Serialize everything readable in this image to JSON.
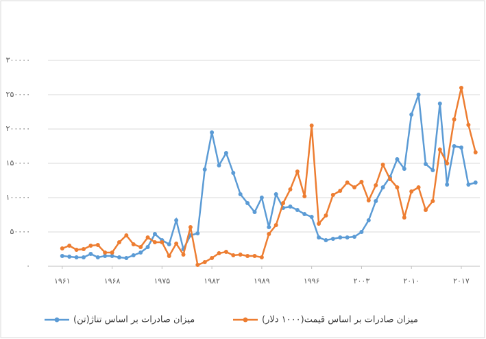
{
  "chart_data": {
    "type": "line",
    "x": [
      1961,
      1962,
      1963,
      1964,
      1965,
      1966,
      1967,
      1968,
      1969,
      1970,
      1971,
      1972,
      1973,
      1974,
      1975,
      1976,
      1977,
      1978,
      1979,
      1980,
      1981,
      1982,
      1983,
      1984,
      1985,
      1986,
      1987,
      1988,
      1989,
      1990,
      1991,
      1992,
      1993,
      1994,
      1995,
      1996,
      1997,
      1998,
      1999,
      2000,
      2001,
      2002,
      2003,
      2004,
      2005,
      2006,
      2007,
      2008,
      2009,
      2010,
      2011,
      2012,
      2013,
      2014,
      2015,
      2016,
      2017,
      2018,
      2019
    ],
    "series": [
      {
        "name": "میزان صادرات بر اساس تناژ(تن)",
        "color": "#5b9bd5",
        "values": [
          15000,
          14000,
          13000,
          13000,
          18000,
          13000,
          15000,
          15000,
          13000,
          12000,
          16000,
          20000,
          28000,
          47000,
          38000,
          32000,
          67000,
          25000,
          45000,
          48000,
          141000,
          195000,
          147000,
          165000,
          136000,
          105000,
          92000,
          79000,
          100000,
          57000,
          105000,
          85000,
          87000,
          82000,
          76000,
          72000,
          42000,
          38000,
          40000,
          42000,
          42000,
          43000,
          50000,
          67000,
          95000,
          115000,
          130000,
          156000,
          142000,
          221000,
          250000,
          149000,
          140000,
          237000,
          119000,
          175000,
          173000,
          119000,
          122000
        ]
      },
      {
        "name": "میزان صادرات بر اساس قیمت(۱۰۰۰ دلار)",
        "color": "#ed7d31",
        "values": [
          26000,
          30000,
          24000,
          25000,
          30000,
          31000,
          20000,
          20000,
          35000,
          45000,
          32000,
          28000,
          42000,
          35000,
          35000,
          15000,
          33000,
          17000,
          57000,
          2000,
          6000,
          12000,
          19000,
          21000,
          16000,
          17000,
          15000,
          15000,
          13000,
          47000,
          60000,
          92000,
          112000,
          138000,
          102000,
          205000,
          62000,
          74000,
          104000,
          110000,
          122000,
          115000,
          123000,
          96000,
          118000,
          148000,
          127000,
          115000,
          71000,
          109000,
          115000,
          82000,
          95000,
          170000,
          150000,
          214000,
          260000,
          206000,
          166000
        ]
      }
    ],
    "xlim": [
      1959,
      2019.6
    ],
    "xticks": [
      {
        "value": 1961,
        "label": "۱۹۶۱"
      },
      {
        "value": 1968,
        "label": "۱۹۶۸"
      },
      {
        "value": 1975,
        "label": "۱۹۷۵"
      },
      {
        "value": 1982,
        "label": "۱۹۸۲"
      },
      {
        "value": 1989,
        "label": "۱۹۸۹"
      },
      {
        "value": 1996,
        "label": "۱۹۹۶"
      },
      {
        "value": 2003,
        "label": "۲۰۰۳"
      },
      {
        "value": 2010,
        "label": "۲۰۱۰"
      },
      {
        "value": 2017,
        "label": "۲۰۱۷"
      }
    ],
    "ylim": [
      0,
      300000
    ],
    "yticks": [
      {
        "value": 0,
        "label": "۰"
      },
      {
        "value": 50000,
        "label": "۵۰۰۰۰"
      },
      {
        "value": 100000,
        "label": "۱۰۰۰۰۰"
      },
      {
        "value": 150000,
        "label": "۱۵۰۰۰۰"
      },
      {
        "value": 200000,
        "label": "۲۰۰۰۰۰"
      },
      {
        "value": 250000,
        "label": "۲۵۰۰۰۰"
      },
      {
        "value": 300000,
        "label": "۳۰۰۰۰۰"
      }
    ],
    "grid": true,
    "legend": "bottom"
  }
}
